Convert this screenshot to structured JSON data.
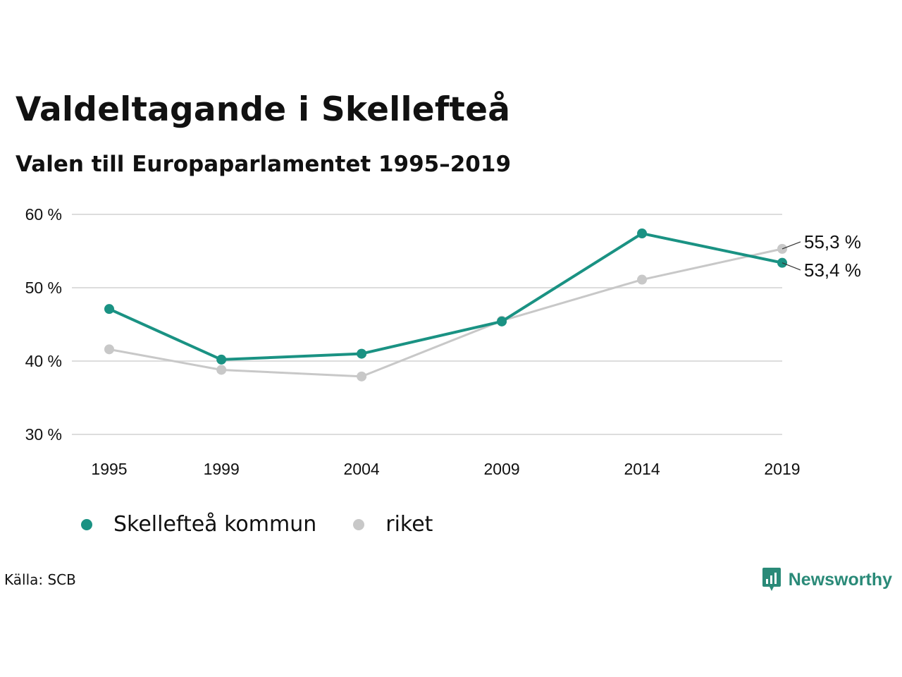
{
  "title": "Valdeltagande i Skellefteå",
  "subtitle": "Valen till Europaparlamentet 1995–2019",
  "source": "Källa: SCB",
  "brand": {
    "name": "Newsworthy",
    "icon": "newsworthy-logo-icon",
    "color": "#2a8a78"
  },
  "colors": {
    "kommun": "#1a9283",
    "riket": "#c8c8c8",
    "grid": "#dddddd"
  },
  "chart_data": {
    "type": "line",
    "title": "Valdeltagande i Skellefteå",
    "subtitle": "Valen till Europaparlamentet 1995–2019",
    "x": [
      1995,
      1999,
      2004,
      2009,
      2014,
      2019
    ],
    "x_tick_labels": [
      "1995",
      "1999",
      "2004",
      "2009",
      "2014",
      "2019"
    ],
    "ylim": [
      30,
      60
    ],
    "y_ticks": [
      30,
      40,
      50,
      60
    ],
    "y_tick_labels": [
      "30 %",
      "40 %",
      "50 %",
      "60 %"
    ],
    "grid": true,
    "legend_position": "bottom-left",
    "series": [
      {
        "name": "Skellefteå kommun",
        "color": "#1a9283",
        "values": [
          47.1,
          40.2,
          41.0,
          45.4,
          57.4,
          53.4
        ],
        "end_label": "53,4 %"
      },
      {
        "name": "riket",
        "color": "#c8c8c8",
        "values": [
          41.6,
          38.8,
          37.9,
          45.5,
          51.1,
          55.3
        ],
        "end_label": "55,3 %"
      }
    ]
  }
}
